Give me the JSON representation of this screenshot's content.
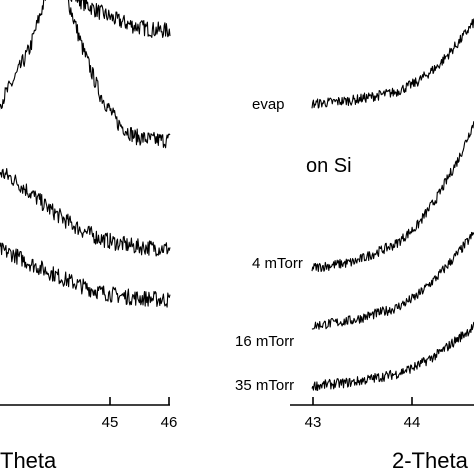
{
  "chart_data": [
    {
      "type": "line",
      "panel": "left",
      "xlabel": "Theta",
      "xlim": [
        44.0,
        46.0
      ],
      "x_ticks": [
        45,
        46
      ],
      "x_tick_labels": [
        "45",
        "46"
      ],
      "y_axis": "none (curves vertically offset, arbitrary intensity units)",
      "grid": false,
      "series": [
        {
          "y_offset": 0.0,
          "points": [
            [
              44.0,
              0.82
            ],
            [
              44.2,
              0.78
            ],
            [
              44.4,
              0.7
            ],
            [
              44.6,
              0.58
            ],
            [
              44.8,
              0.45
            ],
            [
              45.0,
              0.33
            ],
            [
              45.2,
              0.24
            ],
            [
              45.4,
              0.17
            ],
            [
              45.6,
              0.12
            ],
            [
              45.8,
              0.09
            ],
            [
              46.0,
              0.08
            ]
          ]
        },
        {
          "y_offset": 1.55,
          "points": [
            [
              44.0,
              1.8
            ],
            [
              44.2,
              2.05
            ],
            [
              44.4,
              2.35
            ],
            [
              44.6,
              2.85
            ],
            [
              44.7,
              3.1
            ],
            [
              44.8,
              2.85
            ],
            [
              45.0,
              2.35
            ],
            [
              45.2,
              1.95
            ],
            [
              45.4,
              1.7
            ],
            [
              45.6,
              1.58
            ],
            [
              45.8,
              1.55
            ],
            [
              46.0,
              1.55
            ]
          ]
        },
        {
          "y_offset": 2.7,
          "points": [
            [
              44.0,
              3.4
            ],
            [
              44.2,
              3.32
            ],
            [
              44.4,
              3.2
            ],
            [
              44.6,
              3.07
            ],
            [
              44.8,
              2.96
            ],
            [
              45.0,
              2.87
            ],
            [
              45.2,
              2.8
            ],
            [
              45.4,
              2.76
            ],
            [
              45.6,
              2.73
            ],
            [
              45.8,
              2.72
            ],
            [
              46.0,
              2.71
            ]
          ]
        },
        {
          "y_offset": 3.4,
          "points": [
            [
              44.0,
              3.85
            ],
            [
              44.2,
              3.8
            ],
            [
              44.4,
              3.72
            ],
            [
              44.6,
              3.65
            ],
            [
              44.8,
              3.58
            ],
            [
              45.0,
              3.52
            ],
            [
              45.2,
              3.47
            ],
            [
              45.4,
              3.44
            ],
            [
              45.6,
              3.42
            ],
            [
              45.8,
              3.41
            ],
            [
              46.0,
              3.4
            ]
          ]
        }
      ],
      "noise_amplitude": 0.07
    },
    {
      "type": "line",
      "panel": "right",
      "xlabel": "2-Theta",
      "xlim": [
        43.0,
        44.6
      ],
      "x_ticks": [
        43,
        44
      ],
      "x_tick_labels": [
        "43",
        "44"
      ],
      "y_axis": "none (curves vertically offset, arbitrary intensity units)",
      "grid": false,
      "annotation": "on Si",
      "series": [
        {
          "name": "evap",
          "points": [
            [
              43.0,
              0.0
            ],
            [
              43.4,
              0.04
            ],
            [
              43.8,
              0.12
            ],
            [
              44.0,
              0.22
            ],
            [
              44.2,
              0.38
            ],
            [
              44.4,
              0.62
            ],
            [
              44.6,
              0.9
            ]
          ]
        },
        {
          "name": "4 mTorr",
          "points": [
            [
              43.0,
              0.0
            ],
            [
              43.4,
              0.06
            ],
            [
              43.8,
              0.24
            ],
            [
              44.0,
              0.42
            ],
            [
              44.2,
              0.72
            ],
            [
              44.4,
              1.1
            ],
            [
              44.6,
              1.6
            ]
          ]
        },
        {
          "name": "16 mTorr",
          "points": [
            [
              43.0,
              0.0
            ],
            [
              43.4,
              0.06
            ],
            [
              43.8,
              0.18
            ],
            [
              44.0,
              0.3
            ],
            [
              44.2,
              0.5
            ],
            [
              44.4,
              0.74
            ],
            [
              44.6,
              1.0
            ]
          ]
        },
        {
          "name": "35 mTorr",
          "points": [
            [
              43.0,
              0.0
            ],
            [
              43.4,
              0.04
            ],
            [
              43.8,
              0.12
            ],
            [
              44.0,
              0.2
            ],
            [
              44.2,
              0.32
            ],
            [
              44.4,
              0.48
            ],
            [
              44.6,
              0.64
            ]
          ]
        }
      ],
      "noise_amplitude": 0.05
    }
  ]
}
